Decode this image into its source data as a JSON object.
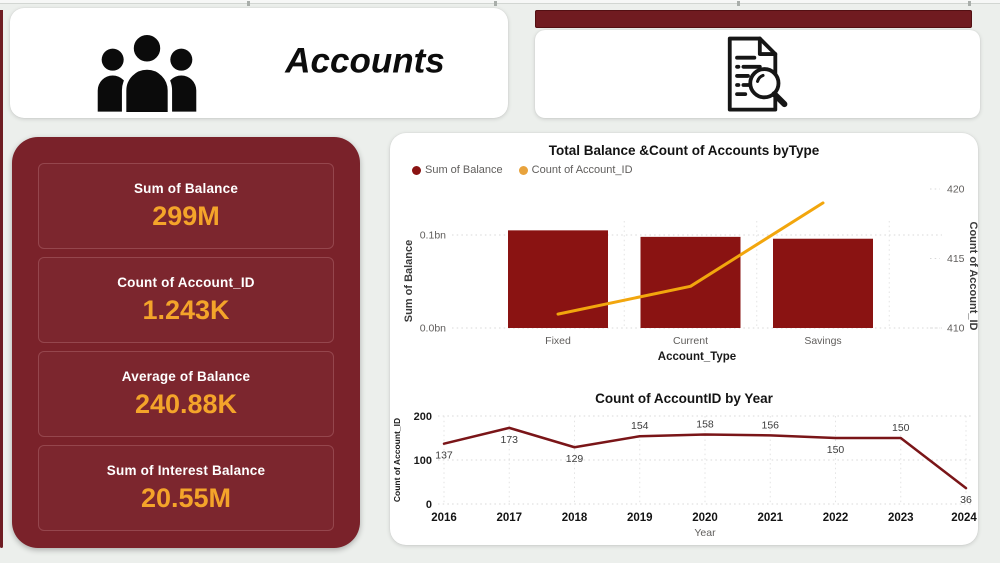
{
  "header": {
    "title": "Accounts",
    "left_icon": "people-group-icon",
    "right_icon": "document-search-icon"
  },
  "kpis": [
    {
      "label": "Sum of Balance",
      "value": "299M"
    },
    {
      "label": "Count of Account_ID",
      "value": "1.243K"
    },
    {
      "label": "Average of Balance",
      "value": "240.88K"
    },
    {
      "label": "Sum of Interest Balance",
      "value": "20.55M"
    }
  ],
  "colors": {
    "page_bg": "#ecefec",
    "panel_maroon": "#7a222a",
    "header_maroon": "#701b20",
    "bar_fill": "#8a1312",
    "dark_red_line": "#7a1518",
    "accent_orange": "#f4a42a",
    "line_orange": "#f2a60d",
    "legend_orange": "#e8a33d",
    "axis_gray": "#605e5c"
  },
  "chart_data": [
    {
      "type": "bar",
      "subtype": "combo-bar-line",
      "title": "Total Balance &Count of Accounts byType",
      "categories": [
        "Fixed",
        "Current",
        "Savings"
      ],
      "xlabel": "Account_Type",
      "legend_position": "top-left",
      "grid": true,
      "series": [
        {
          "name": "Sum of Balance",
          "kind": "bar",
          "axis": "left",
          "color": "#8a1312",
          "values_bn": [
            0.105,
            0.098,
            0.096
          ]
        },
        {
          "name": "Count of Account_ID",
          "kind": "line",
          "axis": "right",
          "color": "#f2a60d",
          "values": [
            411,
            413,
            419
          ]
        }
      ],
      "left_axis": {
        "title": "Sum of Balance",
        "ticks": [
          "0.0bn",
          "0.1bn"
        ],
        "max_bn": 0.1
      },
      "right_axis": {
        "title": "Count of Account_ID",
        "ticks": [
          410,
          415,
          420
        ],
        "min": 410,
        "max": 420
      }
    },
    {
      "type": "line",
      "title": "Count of AccountID by Year",
      "x": [
        "2016",
        "2017",
        "2018",
        "2019",
        "2020",
        "2021",
        "2022",
        "2023",
        "2024"
      ],
      "values": [
        137,
        173,
        129,
        154,
        158,
        156,
        150,
        150,
        36
      ],
      "label_positions": [
        "below",
        "below",
        "below",
        "above",
        "above",
        "above",
        "below",
        "above",
        "below"
      ],
      "xlabel": "Year",
      "ylabel": "Count of Account_ID",
      "yticks": [
        0,
        100,
        200
      ],
      "ylim": [
        0,
        200
      ],
      "line_color": "#7a1518",
      "grid": true
    }
  ]
}
